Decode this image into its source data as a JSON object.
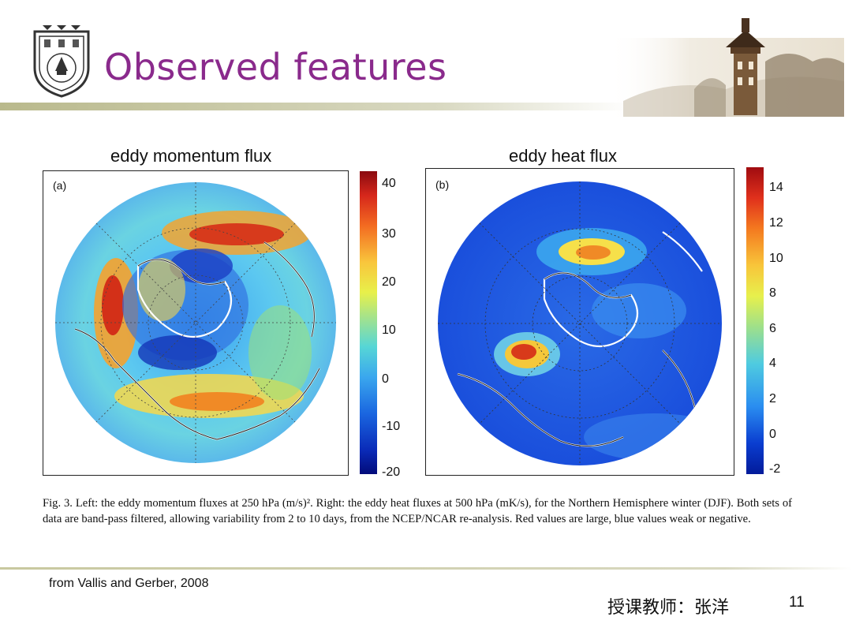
{
  "slide": {
    "title": "Observed features",
    "source_note": "from Vallis and Gerber, 2008",
    "teacher": "授课教师：张洋",
    "page_number": "11"
  },
  "figure": {
    "left_title": "eddy momentum flux",
    "right_title": "eddy heat flux",
    "panel_a_tag": "(a)",
    "panel_b_tag": "(b)",
    "colorbar_a_ticks": [
      "40",
      "30",
      "20",
      "10",
      "0",
      "-10",
      "-20"
    ],
    "colorbar_b_ticks": [
      "14",
      "12",
      "10",
      "8",
      "6",
      "4",
      "2",
      "0",
      "-2"
    ],
    "caption": "Fig. 3. Left: the eddy momentum fluxes at 250 hPa (m/s)². Right: the eddy heat fluxes at 500 hPa (mK/s), for the Northern Hemisphere winter (DJF). Both sets of data are band-pass filtered, allowing variability from 2 to 10 days, from the NCEP/NCAR re-analysis. Red values are large, blue values weak or negative."
  },
  "colors": {
    "title": "#8a2a8c",
    "rule": "#c8c89f"
  },
  "icons": {
    "logo": "university-seal-icon",
    "photo": "tower-photo"
  }
}
